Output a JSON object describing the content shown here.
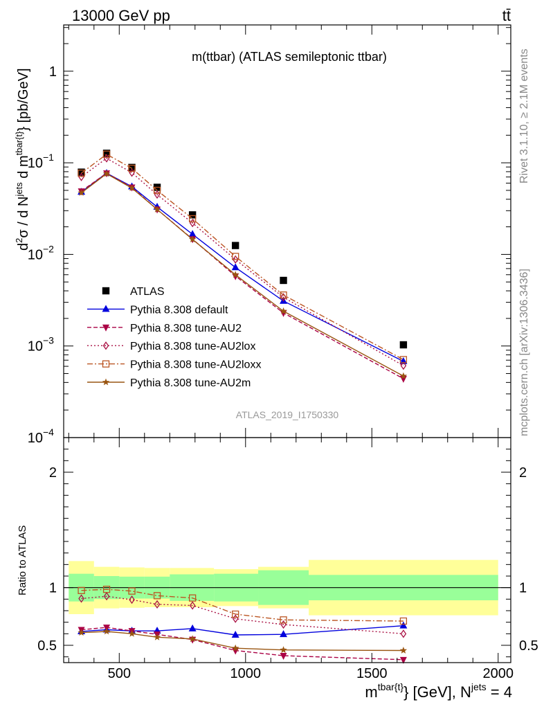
{
  "header": {
    "left": "13000 GeV pp",
    "right": "tt̄"
  },
  "side_text": {
    "rivet": "Rivet 3.1.10, ≥ 2.1M events",
    "mcplots": "mcplots.cern.ch [arXiv:1306.3436]"
  },
  "chart_data": [
    {
      "type": "line",
      "panel": "main",
      "title": "m(ttbar) (ATLAS semileptonic ttbar)",
      "watermark": "ATLAS_2019_I1750330",
      "ylabel": {
        "d2": "d",
        "d2sup": "2",
        "sigma": "σ / d N",
        "jets_sup": "jets",
        "dm": " d m",
        "tbar_sup": "tbar{t}",
        "unit": "} [pb/GeV]"
      },
      "yscale": "log",
      "ylim": [
        0.0001,
        3.2
      ],
      "xlim": [
        280,
        2050
      ],
      "yticks": [
        {
          "value": 1,
          "label": "1"
        },
        {
          "value": 0.1,
          "base": "10",
          "exp": "−1"
        },
        {
          "value": 0.01,
          "base": "10",
          "exp": "−2"
        },
        {
          "value": 0.001,
          "base": "10",
          "exp": "−3"
        },
        {
          "value": 0.0001,
          "base": "10",
          "exp": "−4"
        }
      ],
      "legend": {
        "placement": "center-left",
        "entries": [
          {
            "series": "data",
            "label": "ATLAS"
          },
          {
            "series": "default",
            "label": "Pythia 8.308 default"
          },
          {
            "series": "au2",
            "label": "Pythia 8.308 tune-AU2"
          },
          {
            "series": "au2lox",
            "label": "Pythia 8.308 tune-AU2lox"
          },
          {
            "series": "au2loxx",
            "label": "Pythia 8.308 tune-AU2loxx"
          },
          {
            "series": "au2m",
            "label": "Pythia 8.308 tune-AU2m"
          }
        ]
      },
      "x": [
        350,
        450,
        550,
        650,
        790,
        960,
        1150,
        1625
      ],
      "x_edges": [
        300,
        400,
        500,
        600,
        700,
        875,
        1050,
        1250,
        2000
      ],
      "series": [
        {
          "key": "data",
          "name": "ATLAS",
          "color": "#000000",
          "marker": "square",
          "values": [
            0.079,
            0.127,
            0.089,
            0.054,
            0.027,
            0.0125,
            0.0052,
            0.00103
          ]
        },
        {
          "key": "default",
          "name": "Pythia 8.308 default",
          "color": "#0000dd",
          "marker": "triangle-up",
          "dash": "",
          "values": [
            0.048,
            0.077,
            0.055,
            0.033,
            0.0166,
            0.0072,
            0.0031,
            0.00068
          ]
        },
        {
          "key": "au2",
          "name": "Pythia 8.308 tune-AU2",
          "color": "#aa0044",
          "marker": "triangle-down",
          "dash": "6,3",
          "values": [
            0.049,
            0.077,
            0.054,
            0.031,
            0.0147,
            0.0058,
            0.0023,
            0.00044
          ]
        },
        {
          "key": "au2lox",
          "name": "Pythia 8.308 tune-AU2lox",
          "color": "#aa1144",
          "marker": "diamond-open",
          "dash": "2,3",
          "values": [
            0.07,
            0.112,
            0.078,
            0.045,
            0.022,
            0.0088,
            0.0034,
            0.00061
          ]
        },
        {
          "key": "au2loxx",
          "name": "Pythia 8.308 tune-AU2loxx",
          "color": "#bb5522",
          "marker": "square-open",
          "dash": "8,3,2,3",
          "values": [
            0.077,
            0.124,
            0.087,
            0.05,
            0.0245,
            0.0095,
            0.0036,
            0.00071
          ]
        },
        {
          "key": "au2m",
          "name": "Pythia 8.308 tune-AU2m",
          "color": "#995511",
          "marker": "star",
          "dash": "",
          "values": [
            0.047,
            0.076,
            0.053,
            0.031,
            0.0146,
            0.006,
            0.0024,
            0.00047
          ]
        }
      ]
    },
    {
      "type": "line",
      "panel": "ratio",
      "ylabel": "Ratio to ATLAS",
      "xlabel": {
        "m": "m",
        "sup": "tbar{t}",
        "rest": "} [GeV], N",
        "jets_sup": "jets",
        "tail": " = 4"
      },
      "xlim": [
        280,
        2050
      ],
      "ylim": [
        0.35,
        2.3
      ],
      "xticks": [
        500,
        1000,
        1500,
        2000
      ],
      "yticks": [
        0.5,
        1,
        2
      ],
      "band_inner": [
        0.12,
        0.1,
        0.095,
        0.095,
        0.115,
        0.12,
        0.15,
        0.11
      ],
      "band_outer": [
        0.23,
        0.18,
        0.175,
        0.17,
        0.17,
        0.16,
        0.18,
        0.24
      ],
      "x": [
        350,
        450,
        550,
        650,
        790,
        960,
        1150,
        1625
      ],
      "series": [
        {
          "key": "default",
          "values": [
            0.62,
            0.635,
            0.625,
            0.625,
            0.645,
            0.59,
            0.595,
            0.67
          ]
        },
        {
          "key": "au2",
          "values": [
            0.635,
            0.655,
            0.625,
            0.595,
            0.55,
            0.455,
            0.41,
            0.375
          ]
        },
        {
          "key": "au2lox",
          "values": [
            0.905,
            0.925,
            0.895,
            0.855,
            0.845,
            0.73,
            0.68,
            0.6
          ]
        },
        {
          "key": "au2loxx",
          "values": [
            0.975,
            0.985,
            0.97,
            0.93,
            0.91,
            0.77,
            0.72,
            0.71
          ]
        },
        {
          "key": "au2m",
          "values": [
            0.61,
            0.62,
            0.6,
            0.57,
            0.555,
            0.475,
            0.46,
            0.455
          ]
        }
      ]
    }
  ]
}
